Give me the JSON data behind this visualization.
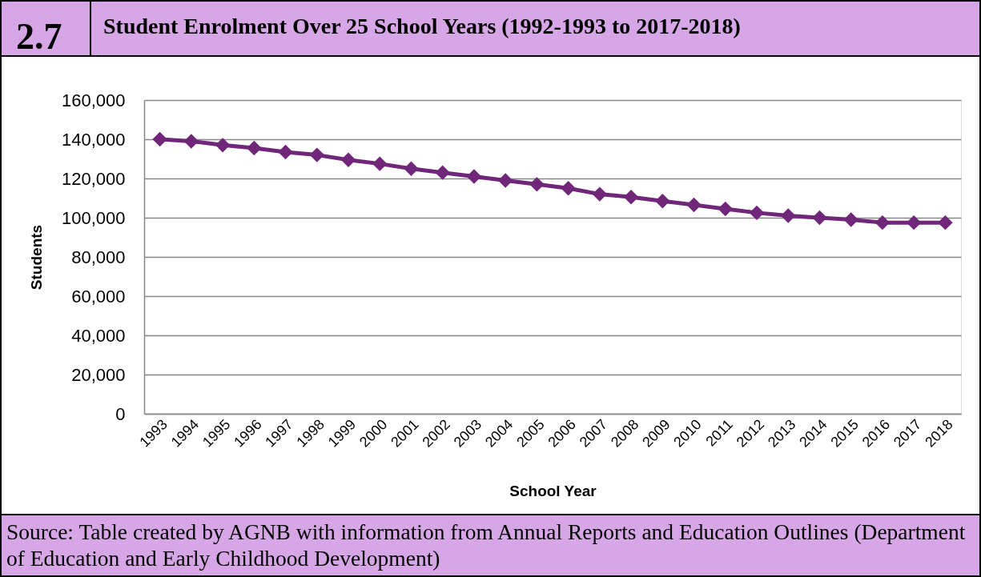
{
  "chart_data": {
    "type": "line",
    "title": "Student Enrolment Over 25 School Years (1992-1993 to 2017-2018)",
    "xlabel": "School Year",
    "ylabel": "Students",
    "categories": [
      "1993",
      "1994",
      "1995",
      "1996",
      "1997",
      "1998",
      "1999",
      "2000",
      "2001",
      "2002",
      "2003",
      "2004",
      "2005",
      "2006",
      "2007",
      "2008",
      "2009",
      "2010",
      "2011",
      "2012",
      "2013",
      "2014",
      "2015",
      "2016",
      "2017",
      "2018"
    ],
    "series": [
      {
        "color": "#70277a",
        "values": [
          140000,
          139000,
          137000,
          135500,
          133500,
          132000,
          129500,
          127500,
          125000,
          123000,
          121000,
          119000,
          117000,
          115000,
          112000,
          110500,
          108500,
          106500,
          104500,
          102500,
          101000,
          100000,
          99000,
          97500,
          97500,
          97500
        ]
      }
    ],
    "ylim": [
      0,
      160000
    ],
    "yticks": [
      0,
      {
        "value": 20000,
        "label": "20,000"
      },
      {
        "value": 40000,
        "label": "40,000"
      },
      {
        "value": 60000,
        "label": "60,000"
      },
      {
        "value": 80000,
        "label": "80,000"
      },
      {
        "value": 100000,
        "label": "100,000"
      },
      {
        "value": 120000,
        "label": "120,000"
      },
      {
        "value": 140000,
        "label": "140,000"
      },
      {
        "value": 160000,
        "label": "160,000"
      }
    ],
    "grid": "y",
    "marker": "diamond",
    "line_style": "solid",
    "annotations": [
      "2.7",
      "Source: Table created by AGNB with information from Annual Reports and Education Outlines (Department of Education and Early Childhood Development)"
    ]
  }
}
